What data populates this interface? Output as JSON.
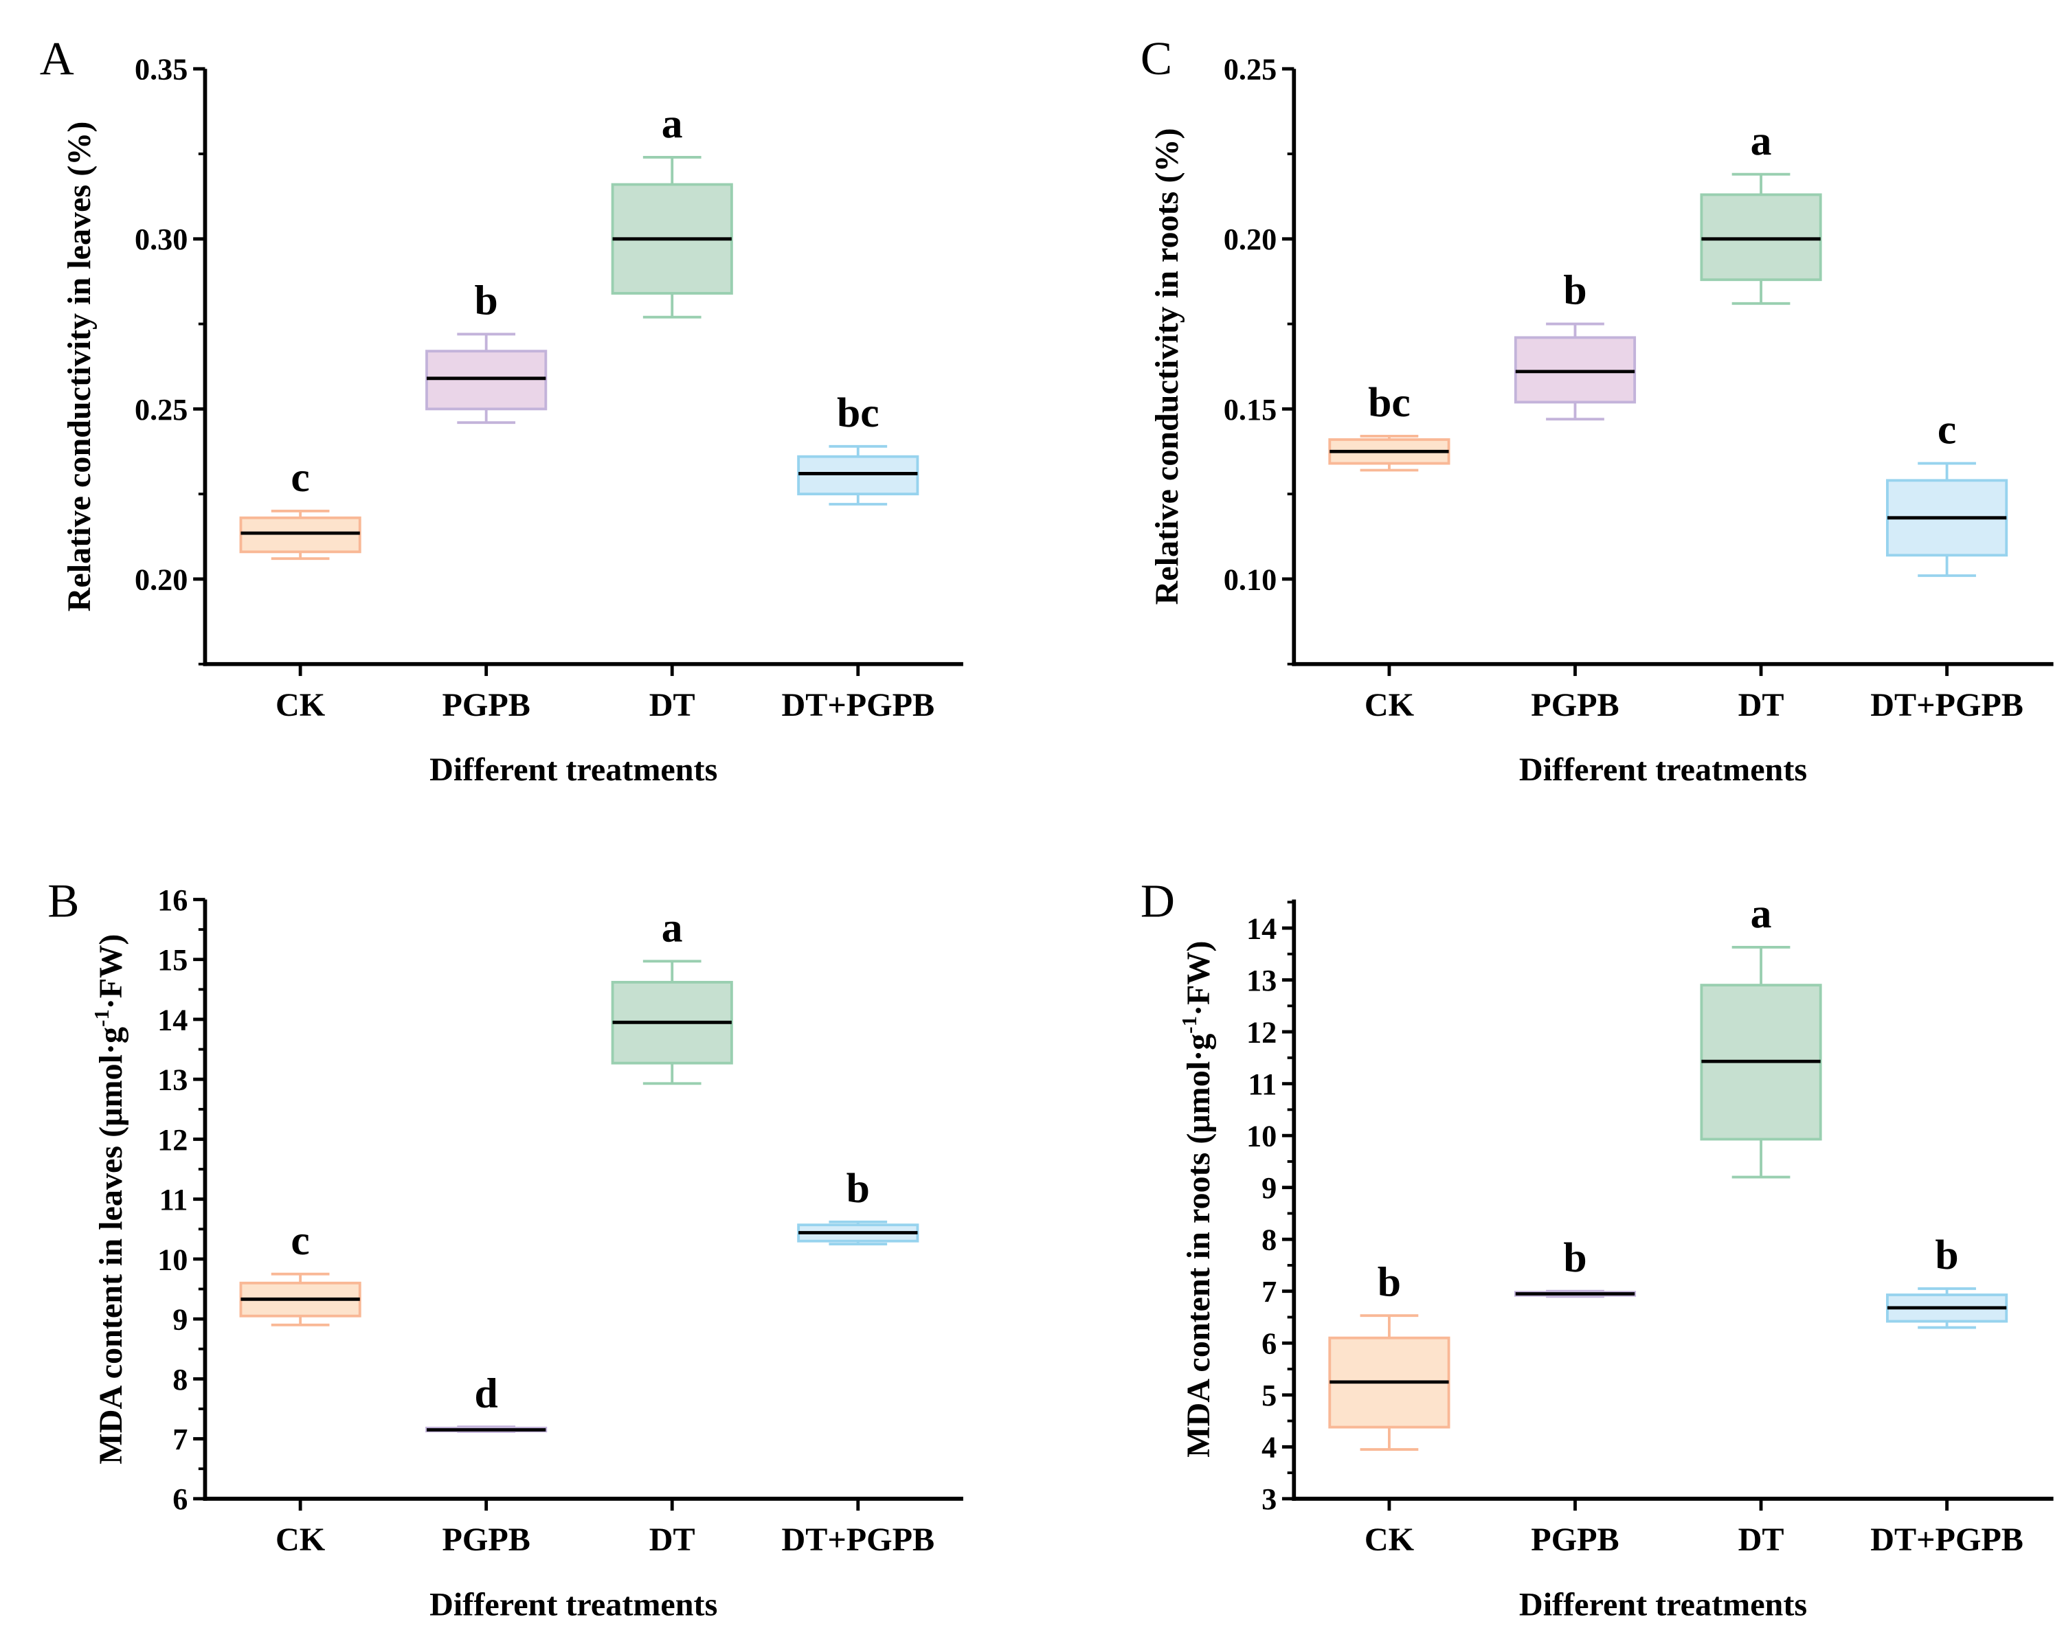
{
  "chart_data": [
    {
      "panel": "A",
      "type": "box",
      "xlabel": "Different treatments",
      "ylabel": {
        "text": "Relative conductivity in leaves (%)",
        "sup": "",
        "suffix": ""
      },
      "categories": [
        "CK",
        "PGPB",
        "DT",
        "DT+PGPB"
      ],
      "ylim": [
        0.175,
        0.35
      ],
      "yticks": [
        "0.20",
        "0.25",
        "0.30",
        "0.35"
      ],
      "ytick_values": [
        0.2,
        0.25,
        0.3,
        0.35
      ],
      "minor_step": 0.025,
      "boxes": [
        {
          "min": 0.206,
          "q1": 0.208,
          "median": 0.2135,
          "q3": 0.218,
          "max": 0.22
        },
        {
          "min": 0.246,
          "q1": 0.25,
          "median": 0.259,
          "q3": 0.267,
          "max": 0.272
        },
        {
          "min": 0.277,
          "q1": 0.284,
          "median": 0.3,
          "q3": 0.316,
          "max": 0.324
        },
        {
          "min": 0.222,
          "q1": 0.225,
          "median": 0.231,
          "q3": 0.236,
          "max": 0.239
        }
      ],
      "significance": [
        "c",
        "b",
        "a",
        "bc"
      ]
    },
    {
      "panel": "B",
      "type": "box",
      "xlabel": "Different treatments",
      "ylabel": {
        "text": "MDA content in leaves (μmol·g",
        "sup": "-1",
        "suffix": "·FW)"
      },
      "categories": [
        "CK",
        "PGPB",
        "DT",
        "DT+PGPB"
      ],
      "ylim": [
        6,
        16
      ],
      "yticks": [
        "6",
        "7",
        "8",
        "9",
        "10",
        "11",
        "12",
        "13",
        "14",
        "15",
        "16"
      ],
      "ytick_values": [
        6,
        7,
        8,
        9,
        10,
        11,
        12,
        13,
        14,
        15,
        16
      ],
      "minor_step": 0.5,
      "boxes": [
        {
          "min": 8.9,
          "q1": 9.05,
          "median": 9.33,
          "q3": 9.6,
          "max": 9.75
        },
        {
          "min": 7.12,
          "q1": 7.13,
          "median": 7.15,
          "q3": 7.18,
          "max": 7.2
        },
        {
          "min": 12.93,
          "q1": 13.27,
          "median": 13.95,
          "q3": 14.62,
          "max": 14.97
        },
        {
          "min": 10.25,
          "q1": 10.3,
          "median": 10.44,
          "q3": 10.57,
          "max": 10.62
        }
      ],
      "significance": [
        "c",
        "d",
        "a",
        "b"
      ]
    },
    {
      "panel": "C",
      "type": "box",
      "xlabel": "Different treatments",
      "ylabel": {
        "text": "Relative conductivity in roots (%)",
        "sup": "",
        "suffix": ""
      },
      "categories": [
        "CK",
        "PGPB",
        "DT",
        "DT+PGPB"
      ],
      "ylim": [
        0.075,
        0.25
      ],
      "yticks": [
        "0.10",
        "0.15",
        "0.20",
        "0.25"
      ],
      "ytick_values": [
        0.1,
        0.15,
        0.2,
        0.25
      ],
      "minor_step": 0.025,
      "boxes": [
        {
          "min": 0.132,
          "q1": 0.134,
          "median": 0.1375,
          "q3": 0.141,
          "max": 0.142
        },
        {
          "min": 0.147,
          "q1": 0.152,
          "median": 0.161,
          "q3": 0.171,
          "max": 0.175
        },
        {
          "min": 0.181,
          "q1": 0.188,
          "median": 0.2,
          "q3": 0.213,
          "max": 0.219
        },
        {
          "min": 0.101,
          "q1": 0.107,
          "median": 0.118,
          "q3": 0.129,
          "max": 0.134
        }
      ],
      "significance": [
        "bc",
        "b",
        "a",
        "c"
      ]
    },
    {
      "panel": "D",
      "type": "box",
      "xlabel": "Different treatments",
      "ylabel": {
        "text": "MDA content in roots (μmol·g",
        "sup": "-1",
        "suffix": "·FW)"
      },
      "categories": [
        "CK",
        "PGPB",
        "DT",
        "DT+PGPB"
      ],
      "ylim": [
        3,
        14.55
      ],
      "yticks": [
        "3",
        "4",
        "5",
        "6",
        "7",
        "8",
        "9",
        "10",
        "11",
        "12",
        "13",
        "14"
      ],
      "ytick_values": [
        3,
        4,
        5,
        6,
        7,
        8,
        9,
        10,
        11,
        12,
        13,
        14
      ],
      "minor_step": 0.5,
      "boxes": [
        {
          "min": 3.95,
          "q1": 4.38,
          "median": 5.25,
          "q3": 6.1,
          "max": 6.53
        },
        {
          "min": 6.9,
          "q1": 6.92,
          "median": 6.95,
          "q3": 6.98,
          "max": 7.0
        },
        {
          "min": 9.2,
          "q1": 9.93,
          "median": 11.43,
          "q3": 12.9,
          "max": 13.63
        },
        {
          "min": 6.3,
          "q1": 6.42,
          "median": 6.68,
          "q3": 6.93,
          "max": 7.05
        }
      ],
      "significance": [
        "b",
        "b",
        "a",
        "b"
      ]
    }
  ],
  "colors": {
    "fill": [
      "#fde3cc",
      "#ead5e8",
      "#c6e0d0",
      "#d5ecf9"
    ],
    "stroke": [
      "#f9b896",
      "#c3b3da",
      "#99cfb0",
      "#97d3ee"
    ],
    "median": "#000000"
  }
}
